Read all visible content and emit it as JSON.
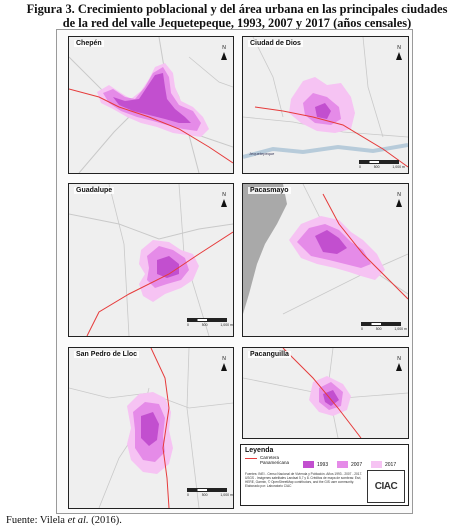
{
  "caption": {
    "line1": "Figura 3. Crecimiento poblacional y del área urbana en las principales ciudades",
    "line2": "de la red del valle Jequetepeque, 1993, 2007 y 2017 (años censales)"
  },
  "source": {
    "prefix": "Fuente: Vilela ",
    "italic": "et al.",
    "suffix": " (2016)."
  },
  "colors": {
    "y1993": "#c24fcf",
    "y2007": "#e58be8",
    "y2017": "#f6c3f3",
    "road": "#e63b3b",
    "background": "#efefef",
    "street": "#bdbdbd"
  },
  "panels": {
    "chepen": {
      "title": "Chepén"
    },
    "ciudad": {
      "title": "Ciudad de Dios",
      "river": "Jequetepeque"
    },
    "guadalupe": {
      "title": "Guadalupe"
    },
    "pacasmayo": {
      "title": "Pacasmayo"
    },
    "sanpedro": {
      "title": "San Pedro de Lloc"
    },
    "pacanguilla": {
      "title": "Pacanguilla"
    }
  },
  "north_label": "N",
  "scale_labels": [
    "0",
    "500",
    "1,000 m"
  ],
  "legend": {
    "title": "Leyenda",
    "road_label": "Carretera Panamericana",
    "y1993": "1993",
    "y2007": "2007",
    "y2017": "2017",
    "notes": "Fuentes: INEI - Censo Nacional de Vivienda y Población. Años 1993 - 2007 - 2017. USGS - Imágenes satelitales Landsat 5,7 y 8. Créditos de mapa de sombras: Esri, HERE, Garmin, © OpenStreetMap contributors, and the GIS user community. Elaborado por: Laboratorio CIAC",
    "logo": "CIAC"
  }
}
